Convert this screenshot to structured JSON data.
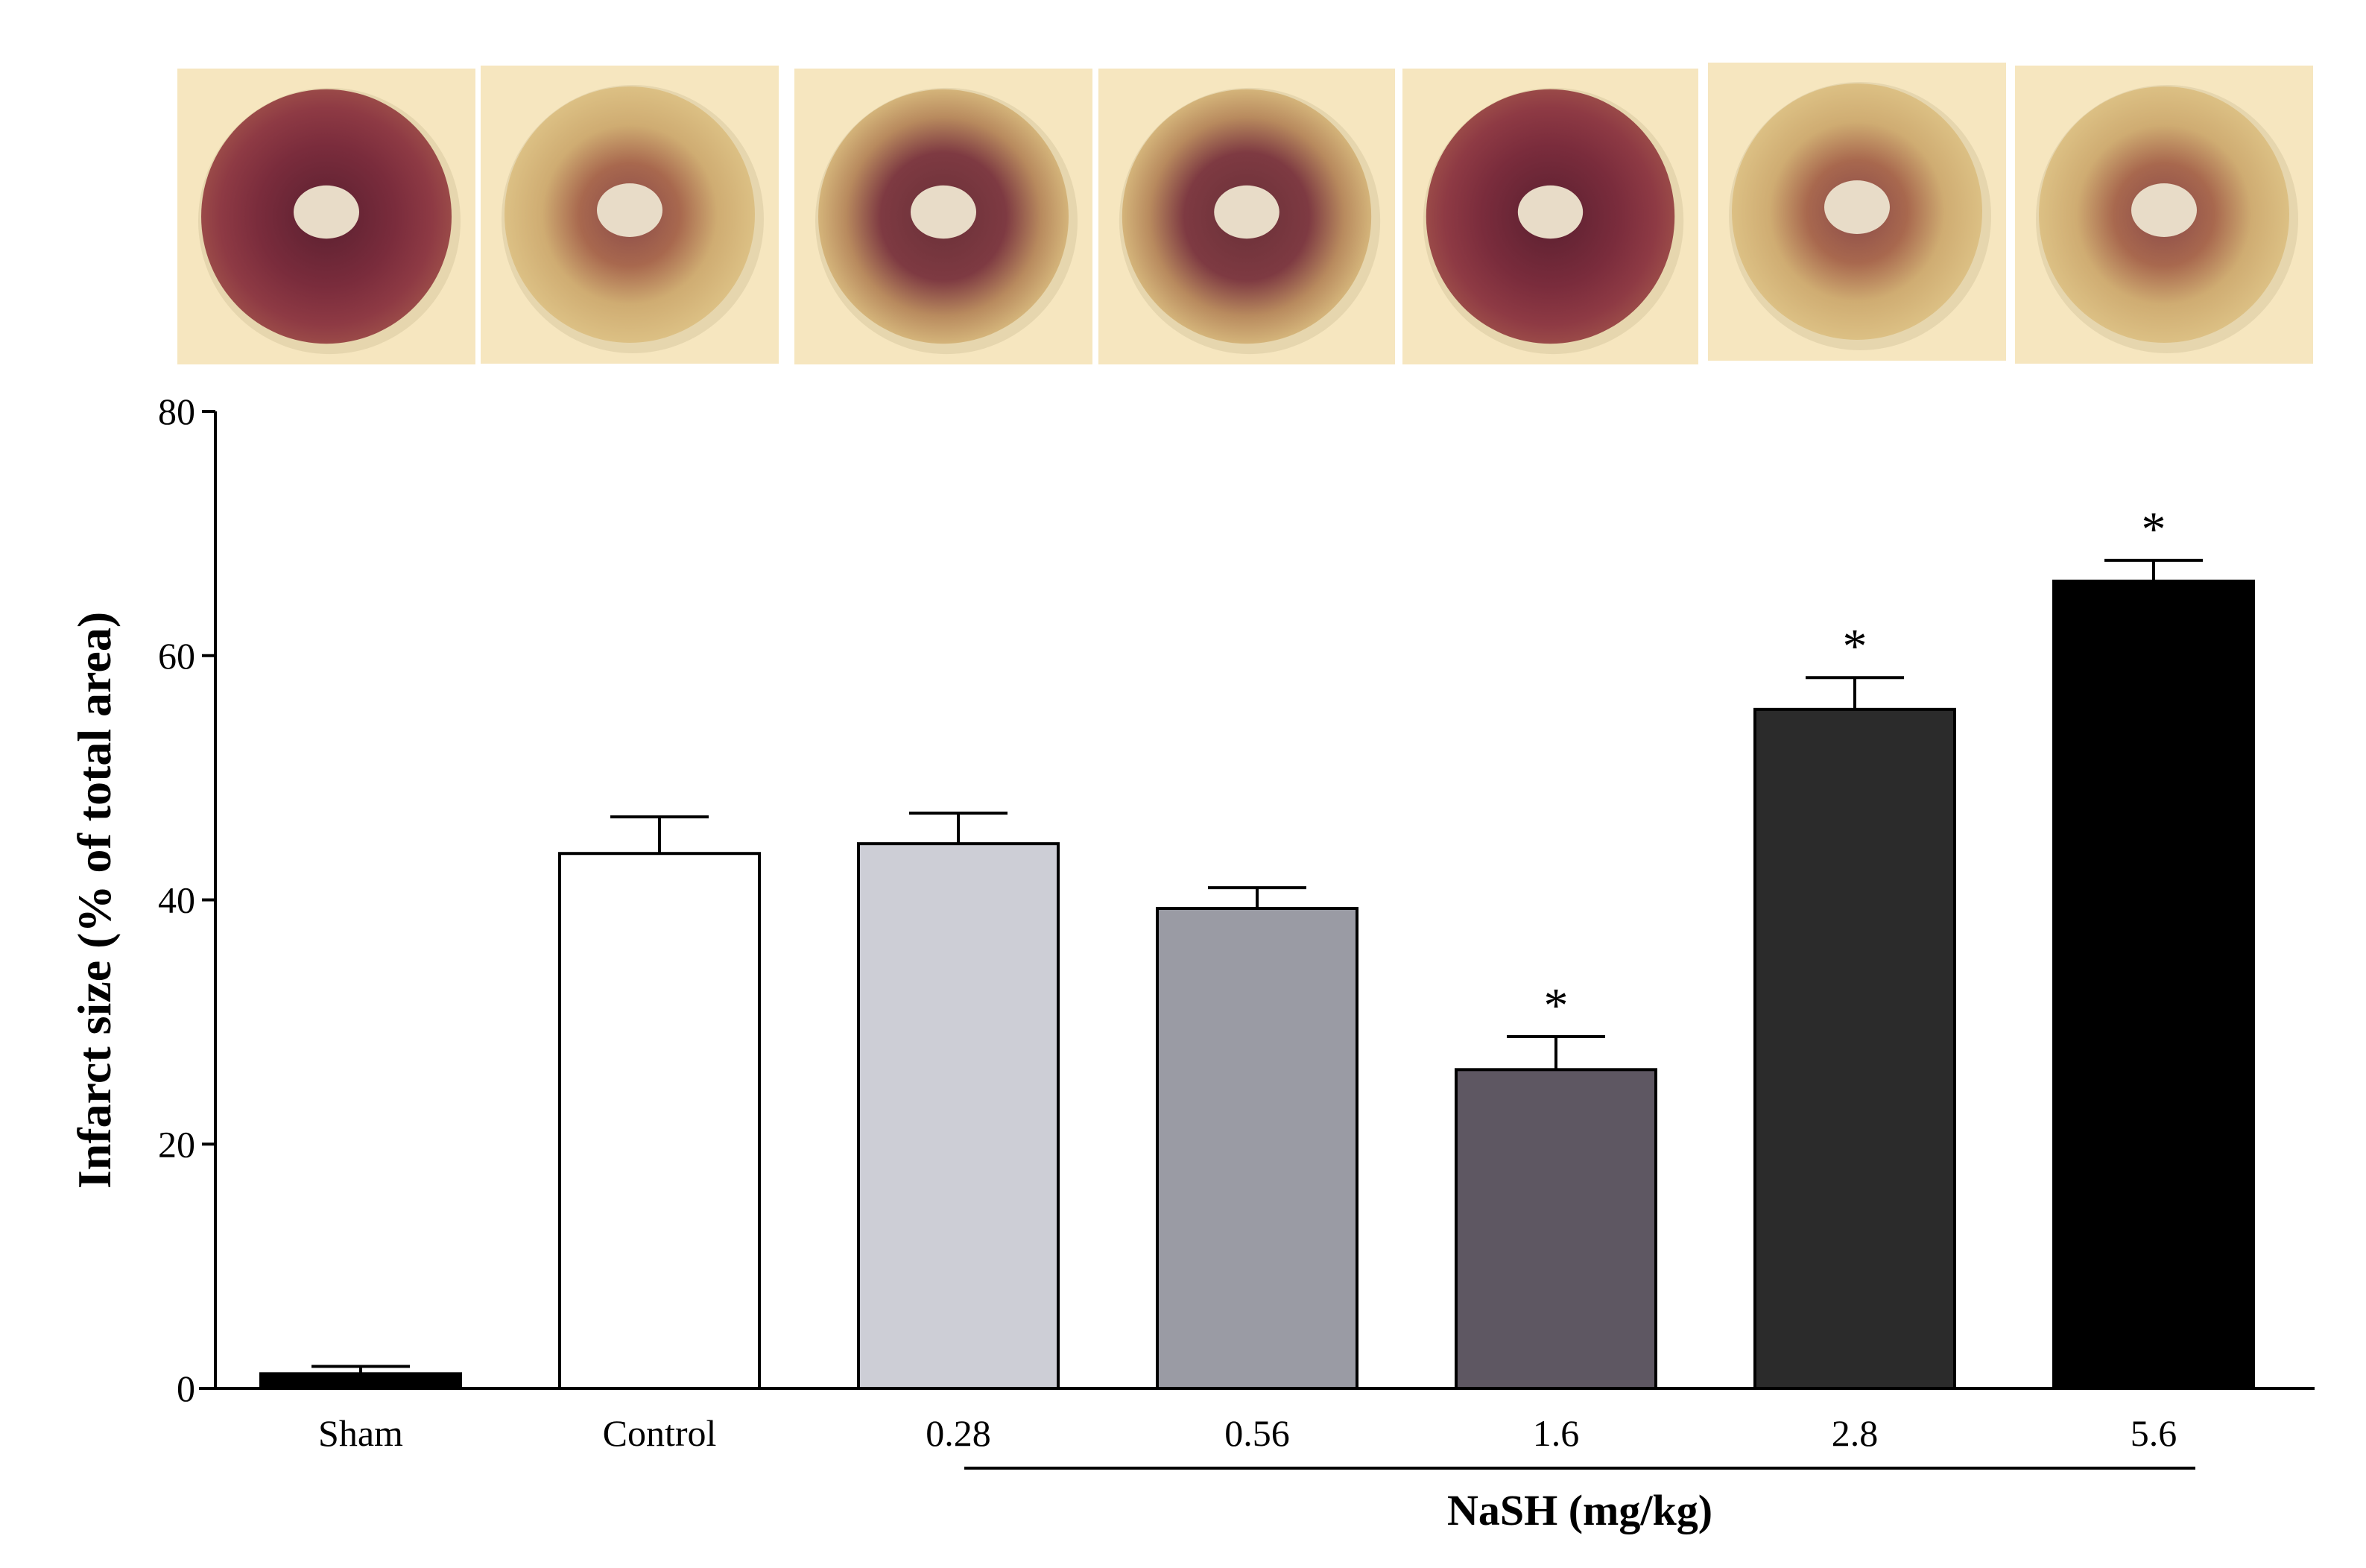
{
  "chart_data": {
    "type": "bar",
    "categories": [
      "Sham",
      "Control",
      "0.28",
      "0.56",
      "1.6",
      "2.8",
      "5.6"
    ],
    "values": [
      1.2,
      43.8,
      44.6,
      39.3,
      26.1,
      55.6,
      66.1
    ],
    "errors": [
      0.6,
      3.0,
      2.5,
      1.7,
      2.7,
      2.6,
      1.7
    ],
    "significant": [
      false,
      false,
      false,
      false,
      true,
      true,
      true
    ],
    "significance_marker": "*",
    "bar_colors": [
      "#000000",
      "#ffffff",
      "#cdced6",
      "#9a9ba4",
      "#5e5762",
      "#2b2b2b",
      "#000000"
    ],
    "ylabel": "Infarct size (% of total area)",
    "xlabel": "",
    "group_label": "NaSH (mg/kg)",
    "ylim": [
      0,
      80
    ],
    "yticks": [
      0,
      20,
      40,
      60,
      80
    ],
    "grid": false,
    "legend": "none"
  },
  "heart_images": [
    {
      "name": "sham",
      "tone": "dark"
    },
    {
      "name": "control",
      "tone": "pale"
    },
    {
      "name": "0.28",
      "tone": "medium"
    },
    {
      "name": "0.56",
      "tone": "medium"
    },
    {
      "name": "1.6",
      "tone": "dark"
    },
    {
      "name": "2.8",
      "tone": "pale"
    },
    {
      "name": "5.6",
      "tone": "pale"
    }
  ]
}
